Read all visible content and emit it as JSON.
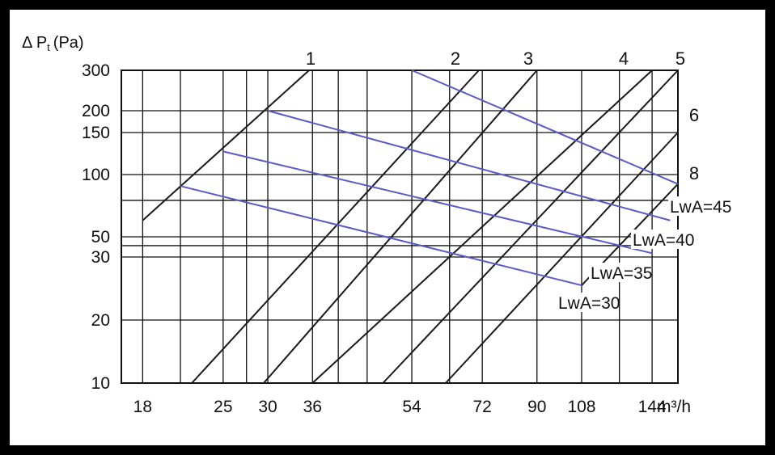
{
  "chart_data": {
    "type": "line",
    "title": "",
    "ylabel_parts": {
      "main": "Δ P",
      "sub": "t",
      "unit": "(Pa)"
    },
    "xlabel": "m³/h",
    "x_ticks": [
      "18",
      "25",
      "30",
      "36",
      "54",
      "72",
      "90",
      "108",
      "144"
    ],
    "y_ticks": [
      "300",
      "200",
      "150",
      "100",
      "50",
      "30",
      "20",
      "10"
    ],
    "grid": true,
    "fan_curves": [
      {
        "name": "1",
        "points": [
          [
            18,
            60
          ],
          [
            35.5,
            300
          ]
        ]
      },
      {
        "name": "2",
        "points": [
          [
            22,
            10
          ],
          [
            71,
            300
          ]
        ]
      },
      {
        "name": "3",
        "points": [
          [
            29.5,
            10
          ],
          [
            90,
            300
          ]
        ]
      },
      {
        "name": "4",
        "points": [
          [
            36,
            10
          ],
          [
            144,
            300
          ]
        ]
      },
      {
        "name": "5",
        "points": [
          [
            48,
            10
          ],
          [
            160,
            300
          ]
        ]
      },
      {
        "name": "6",
        "points": [
          [
            62,
            10
          ],
          [
            160,
            150
          ]
        ]
      },
      {
        "name": "8",
        "points": [
          [
            108,
            25
          ],
          [
            160,
            90
          ]
        ]
      }
    ],
    "noise_lines": [
      {
        "name": "LwA=30",
        "points": [
          [
            21,
            88
          ],
          [
            108,
            25
          ]
        ]
      },
      {
        "name": "LwA=35",
        "points": [
          [
            25,
            125
          ],
          [
            144,
            33
          ]
        ]
      },
      {
        "name": "LwA=40",
        "points": [
          [
            30,
            200
          ],
          [
            155,
            60
          ]
        ]
      },
      {
        "name": "LwA=45",
        "points": [
          [
            54,
            300
          ],
          [
            160,
            90
          ]
        ]
      }
    ]
  },
  "colors": {
    "grid": "#111111",
    "fan_curve": "#1a1a1a",
    "noise_line": "#5a5ac8"
  }
}
